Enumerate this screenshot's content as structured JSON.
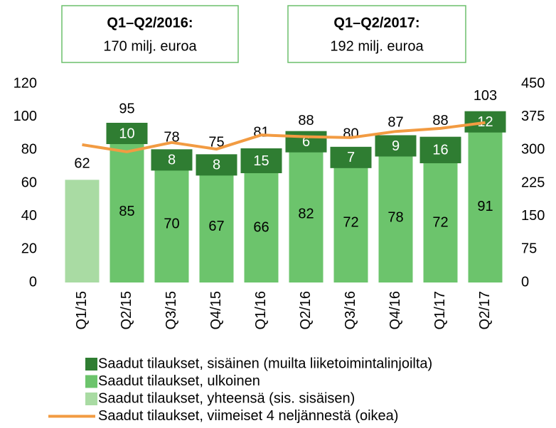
{
  "chart_data": {
    "type": "bar",
    "annotations": [
      {
        "title": "Q1–Q2/2016:",
        "text": "170 milj. euroa"
      },
      {
        "title": "Q1–Q2/2017:",
        "text": "192 milj. euroa"
      }
    ],
    "categories": [
      "Q1/15",
      "Q2/15",
      "Q3/15",
      "Q4/15",
      "Q1/16",
      "Q2/16",
      "Q3/16",
      "Q4/16",
      "Q1/17",
      "Q2/17"
    ],
    "series": [
      {
        "name": "Saadut tilaukset, sisäinen (muilta liiketoimintalinjoilta)",
        "color": "#2f7d32",
        "values": [
          null,
          10,
          8,
          8,
          15,
          6,
          7,
          9,
          16,
          12
        ]
      },
      {
        "name": "Saadut tilaukset, ulkoinen",
        "color": "#6cc46c",
        "values": [
          null,
          85,
          70,
          67,
          66,
          82,
          72,
          78,
          72,
          91
        ]
      },
      {
        "name": "Saadut tilaukset, yhteensä (sis. sisäisen)",
        "color": "#a9dba3",
        "values": [
          62,
          null,
          null,
          null,
          null,
          null,
          null,
          null,
          null,
          null
        ]
      },
      {
        "name": "Saadut tilaukset, viimeiset 4 neljännestä (oikea)",
        "color": "#f29b42",
        "type": "line",
        "axis": "y2",
        "values": [
          312,
          296,
          317,
          302,
          334,
          330,
          328,
          342,
          349,
          362
        ]
      }
    ],
    "totals": [
      62,
      95,
      78,
      75,
      81,
      88,
      80,
      87,
      88,
      103
    ],
    "ylim": [
      0,
      120
    ],
    "yticks": [
      0,
      20,
      40,
      60,
      80,
      100,
      120
    ],
    "y2lim": [
      0,
      450
    ],
    "y2ticks": [
      0,
      75,
      150,
      225,
      300,
      375,
      450
    ]
  }
}
